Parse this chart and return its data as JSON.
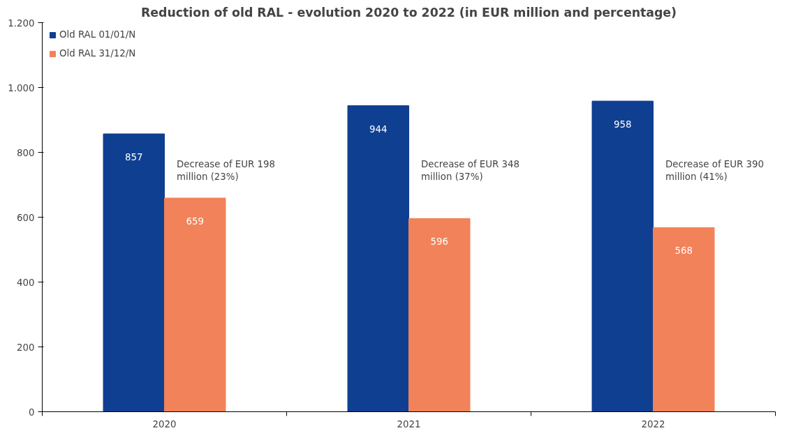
{
  "chart_data": {
    "type": "bar",
    "title": "Reduction of old RAL - evolution 2020 to 2022 (in EUR million and percentage)",
    "categories": [
      "2020",
      "2021",
      "2022"
    ],
    "series": [
      {
        "name": "Old RAL 01/01/N",
        "color": "#0f3f91",
        "values": [
          857,
          944,
          958
        ]
      },
      {
        "name": "Old RAL 31/12/N",
        "color": "#f2825a",
        "values": [
          659,
          596,
          568
        ]
      }
    ],
    "ylim": [
      0,
      1200
    ],
    "yticks": [
      0,
      200,
      400,
      600,
      800,
      {
        "value": 1000,
        "label": "1.000"
      },
      {
        "value": 1200,
        "label": "1.200"
      }
    ],
    "grid": false,
    "legend": "top left",
    "data_labels": true,
    "annotations": [
      {
        "text": "Decrease of EUR 198 million (23%)",
        "x": "2020",
        "y": 780
      },
      {
        "text": "Decrease of EUR 348 million (37%)",
        "x": "2021",
        "y": 780
      },
      {
        "text": "Decrease of EUR 390 million (41%)",
        "x": "2022",
        "y": 780
      }
    ]
  }
}
